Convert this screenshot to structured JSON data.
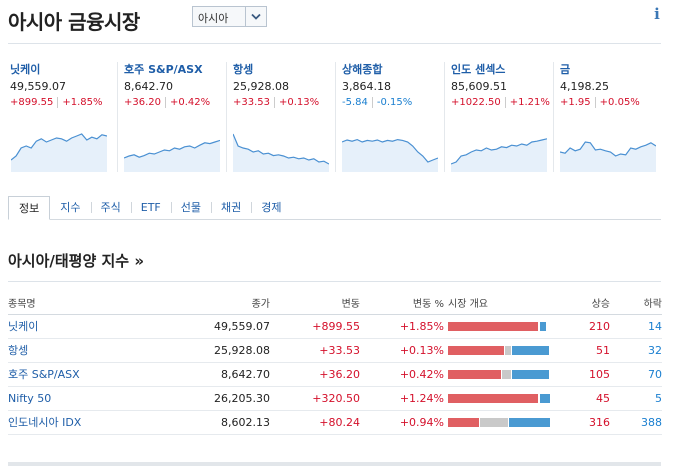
{
  "header": {
    "title": "아시아 금융시장",
    "region_select": {
      "value": "아시아"
    },
    "info_label": "i"
  },
  "tickers": [
    {
      "name": "닛케이",
      "price": "49,559.07",
      "change": "+899.55",
      "pct": "+1.85%",
      "direction": "up",
      "spark": [
        0.25,
        0.35,
        0.55,
        0.6,
        0.55,
        0.72,
        0.78,
        0.7,
        0.75,
        0.8,
        0.78,
        0.72,
        0.8,
        0.85,
        0.9,
        0.75,
        0.82,
        0.78,
        0.88,
        0.85
      ]
    },
    {
      "name": "호주 S&P/ASX",
      "price": "8,642.70",
      "change": "+36.20",
      "pct": "+0.42%",
      "direction": "up",
      "spark": [
        0.3,
        0.35,
        0.38,
        0.32,
        0.36,
        0.42,
        0.4,
        0.45,
        0.5,
        0.48,
        0.55,
        0.52,
        0.58,
        0.6,
        0.55,
        0.62,
        0.68,
        0.66,
        0.7,
        0.74
      ]
    },
    {
      "name": "항셍",
      "price": "25,928.08",
      "change": "+33.53",
      "pct": "+0.13%",
      "direction": "up",
      "spark": [
        0.9,
        0.6,
        0.55,
        0.52,
        0.45,
        0.48,
        0.4,
        0.42,
        0.36,
        0.38,
        0.35,
        0.3,
        0.32,
        0.28,
        0.3,
        0.25,
        0.28,
        0.2,
        0.22,
        0.15
      ]
    },
    {
      "name": "상해종합",
      "price": "3,864.18",
      "change": "-5.84",
      "pct": "-0.15%",
      "direction": "down",
      "spark": [
        0.7,
        0.75,
        0.72,
        0.76,
        0.7,
        0.74,
        0.72,
        0.75,
        0.7,
        0.74,
        0.72,
        0.76,
        0.74,
        0.7,
        0.6,
        0.45,
        0.35,
        0.2,
        0.25,
        0.3
      ]
    },
    {
      "name": "인도 센섹스",
      "price": "85,609.51",
      "change": "+1022.50",
      "pct": "+1.21%",
      "direction": "up",
      "spark": [
        0.15,
        0.2,
        0.35,
        0.38,
        0.45,
        0.5,
        0.48,
        0.55,
        0.5,
        0.52,
        0.58,
        0.56,
        0.62,
        0.6,
        0.65,
        0.62,
        0.7,
        0.72,
        0.75,
        0.78
      ]
    },
    {
      "name": "금",
      "price": "4,198.25",
      "change": "+1.95",
      "pct": "+0.05%",
      "direction": "up",
      "spark": [
        0.45,
        0.42,
        0.55,
        0.48,
        0.52,
        0.7,
        0.68,
        0.5,
        0.52,
        0.48,
        0.45,
        0.35,
        0.4,
        0.38,
        0.55,
        0.52,
        0.58,
        0.62,
        0.68,
        0.6
      ]
    }
  ],
  "tabs": [
    "정보",
    "지수",
    "주식",
    "ETF",
    "선물",
    "채권",
    "경제"
  ],
  "active_tab": "정보",
  "section": {
    "title": "아시아/태평양 지수 »"
  },
  "table": {
    "headers": [
      "종목명",
      "종가",
      "변동",
      "변동 %",
      "시장 개요",
      "상승",
      "하락"
    ],
    "rows": [
      {
        "name": "닛케이",
        "last": "49,559.07",
        "change": "+899.55",
        "pct": "+1.85%",
        "adv": "210",
        "dec": "14",
        "breadth": [
          0.88,
          0.0,
          0.06
        ]
      },
      {
        "name": "항셍",
        "last": "25,928.08",
        "change": "+33.53",
        "pct": "+0.13%",
        "adv": "51",
        "dec": "32",
        "breadth": [
          0.55,
          0.06,
          0.36
        ]
      },
      {
        "name": "호주 S&P/ASX",
        "last": "8,642.70",
        "change": "+36.20",
        "pct": "+0.42%",
        "adv": "105",
        "dec": "70",
        "breadth": [
          0.52,
          0.09,
          0.36
        ]
      },
      {
        "name": "Nifty 50",
        "last": "26,205.30",
        "change": "+320.50",
        "pct": "+1.24%",
        "adv": "45",
        "dec": "5",
        "breadth": [
          0.88,
          0.0,
          0.1
        ]
      },
      {
        "name": "인도네시아 IDX",
        "last": "8,602.13",
        "change": "+80.24",
        "pct": "+0.94%",
        "adv": "316",
        "dec": "388",
        "breadth": [
          0.3,
          0.28,
          0.4
        ]
      }
    ]
  },
  "colors": {
    "up": "#d4102b",
    "down": "#1a7fd0",
    "link": "#1f5ea8",
    "spark_line": "#4a90d2",
    "spark_fill": "#e6f0fa"
  }
}
